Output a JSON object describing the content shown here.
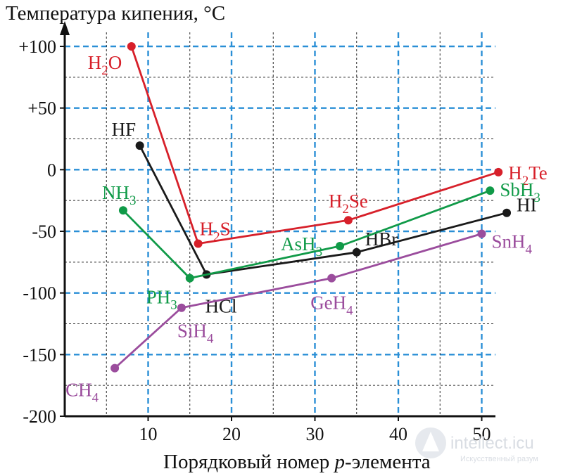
{
  "chart_data": {
    "type": "line",
    "ylabel": "Температура кипения, °C",
    "xlabel_parts": [
      "Порядковый номер ",
      "p",
      "-элемента"
    ],
    "xlim": [
      0,
      52
    ],
    "ylim": [
      -200,
      100
    ],
    "x_ticks": [
      10,
      20,
      30,
      40,
      50
    ],
    "y_ticks": [
      {
        "value": 100,
        "label": "+100"
      },
      {
        "value": 50,
        "label": "+50"
      },
      {
        "value": 0,
        "label": "0"
      },
      {
        "value": -50,
        "label": "-50"
      },
      {
        "value": -100,
        "label": "-100"
      },
      {
        "value": -150,
        "label": "-150"
      },
      {
        "value": -200,
        "label": "-200"
      }
    ],
    "grid": true,
    "series": [
      {
        "key": "group16",
        "color": "#d7202a",
        "points": [
          {
            "x": 8,
            "y": 100,
            "formula": [
              "H",
              "2",
              "O"
            ]
          },
          {
            "x": 16,
            "y": -60,
            "formula": [
              "H",
              "2",
              "S"
            ]
          },
          {
            "x": 34,
            "y": -41,
            "formula": [
              "H",
              "2",
              "Se"
            ]
          },
          {
            "x": 52,
            "y": -2,
            "formula": [
              "H",
              "2",
              "Te"
            ]
          }
        ]
      },
      {
        "key": "group17",
        "color": "#1a1a1a",
        "points": [
          {
            "x": 9,
            "y": 19.5,
            "formula": [
              "HF"
            ]
          },
          {
            "x": 17,
            "y": -85,
            "formula": [
              "HCl"
            ]
          },
          {
            "x": 35,
            "y": -67,
            "formula": [
              "HBr"
            ]
          },
          {
            "x": 53,
            "y": -35,
            "formula": [
              "HI"
            ]
          }
        ]
      },
      {
        "key": "group15",
        "color": "#109a48",
        "points": [
          {
            "x": 7,
            "y": -33,
            "formula": [
              "NH",
              "3",
              ""
            ]
          },
          {
            "x": 15,
            "y": -88,
            "formula": [
              "PH",
              "3",
              ""
            ]
          },
          {
            "x": 33,
            "y": -62,
            "formula": [
              "AsH",
              "3",
              ""
            ]
          },
          {
            "x": 51,
            "y": -17,
            "formula": [
              "SbH",
              "3",
              ""
            ]
          }
        ]
      },
      {
        "key": "group14",
        "color": "#9b4d9d",
        "points": [
          {
            "x": 6,
            "y": -161,
            "formula": [
              "CH",
              "4",
              ""
            ]
          },
          {
            "x": 14,
            "y": -112,
            "formula": [
              "SiH",
              "4",
              ""
            ]
          },
          {
            "x": 32,
            "y": -88,
            "formula": [
              "GeH",
              "4",
              ""
            ]
          },
          {
            "x": 50,
            "y": -52,
            "formula": [
              "SnH",
              "4",
              ""
            ]
          }
        ]
      }
    ]
  },
  "watermark": {
    "brand": "intellect.icu",
    "tagline": "Искусственный разум"
  }
}
